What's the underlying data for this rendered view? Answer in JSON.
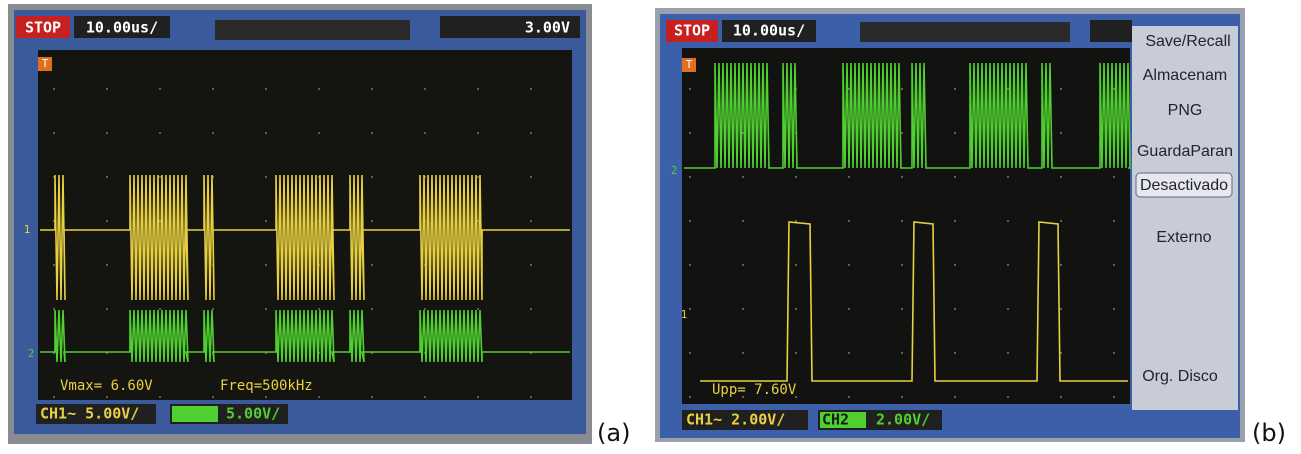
{
  "panel_a": {
    "status": "STOP",
    "timebase": "10.00us/",
    "trigger_level": "3.00V",
    "markers": {
      "trigger": "T",
      "ch1": "1",
      "ch2": "2"
    },
    "measurements": [
      "Vmax= 6.60V",
      "Freq=500kHz"
    ],
    "ch1_scale": "CH1~ 5.00V/",
    "ch2_scale": "5.00V/",
    "caption": "(a)"
  },
  "panel_b": {
    "status": "STOP",
    "timebase": "10.00us/",
    "markers": {
      "trigger": "T",
      "ch2": "2",
      "ch1": "1"
    },
    "measurements": [
      "Upp= 7.60V"
    ],
    "ch1_scale": "CH1~ 2.00V/",
    "ch2_label": "CH2",
    "ch2_scale": "2.00V/",
    "menu": [
      "Save/Recall",
      "Almacenam",
      "PNG",
      "GuardaParan",
      "Desactivado",
      "Externo",
      "Org. Disco"
    ],
    "caption": "(b)"
  }
}
